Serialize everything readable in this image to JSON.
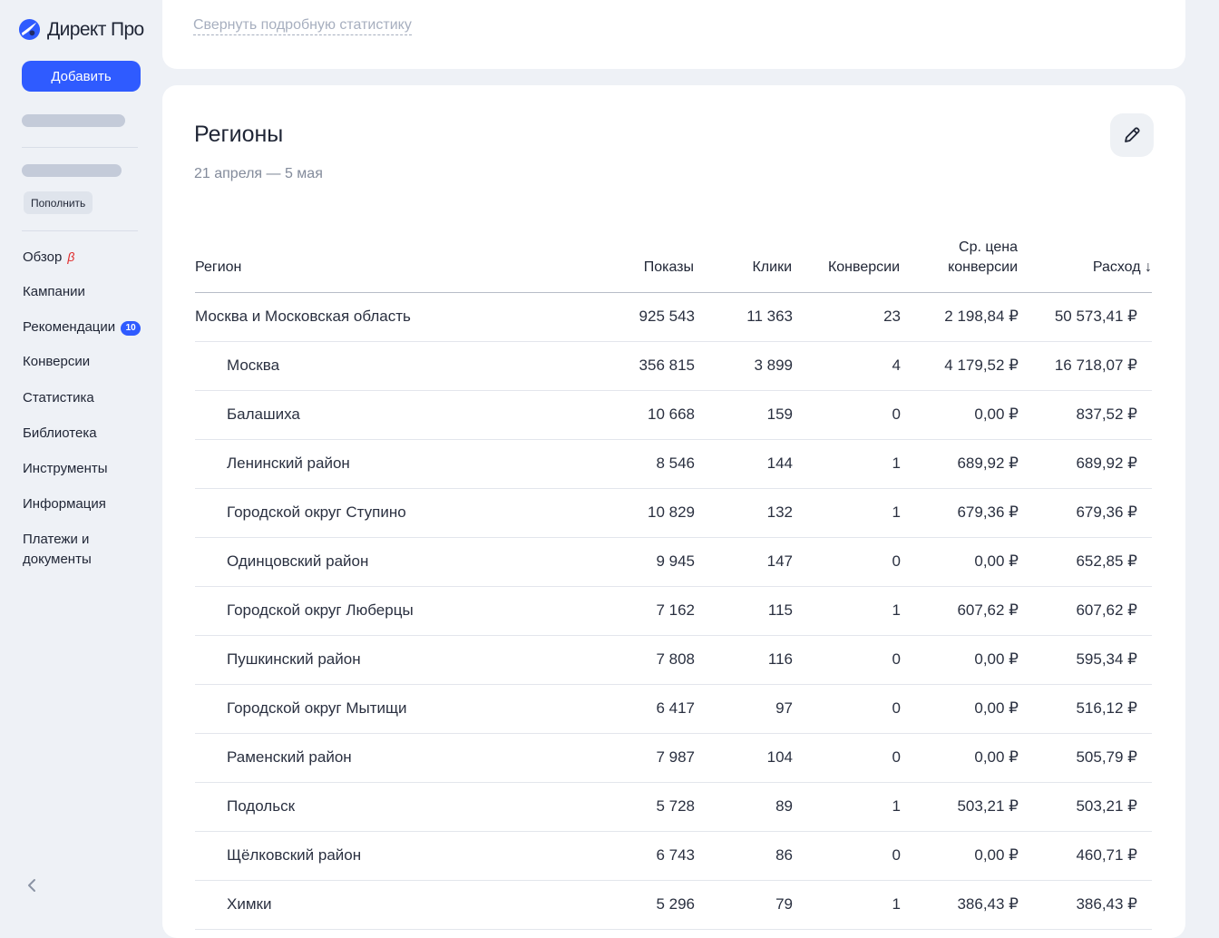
{
  "app": {
    "logo_text": "Директ Про"
  },
  "sidebar": {
    "add_label": "Добавить",
    "topup_label": "Пополнить",
    "items": [
      {
        "label": "Обзор",
        "beta": "β"
      },
      {
        "label": "Кампании"
      },
      {
        "label": "Рекомендации",
        "badge": "10"
      },
      {
        "label": "Конверсии"
      },
      {
        "label": "Статистика"
      },
      {
        "label": "Библиотека"
      },
      {
        "label": "Инструменты"
      },
      {
        "label": "Информация"
      },
      {
        "label": "Платежи и",
        "label2": "документы"
      }
    ]
  },
  "top_card": {
    "collapse_label": "Свернуть подробную статистику"
  },
  "regions": {
    "title": "Регионы",
    "date_range": "21 апреля — 5 мая",
    "columns": {
      "region": "Регион",
      "impressions": "Показы",
      "clicks": "Клики",
      "conversions": "Конверсии",
      "avg_cost_line1": "Ср. цена",
      "avg_cost_line2": "конверсии",
      "spend": "Расход ↓"
    },
    "rows": [
      {
        "region": "Москва и Московская область",
        "impressions": "925 543",
        "clicks": "11 363",
        "conversions": "23",
        "avg_cost": "2 198,84 ₽",
        "spend": "50 573,41 ₽",
        "child": false
      },
      {
        "region": "Москва",
        "impressions": "356 815",
        "clicks": "3 899",
        "conversions": "4",
        "avg_cost": "4 179,52 ₽",
        "spend": "16 718,07 ₽",
        "child": true
      },
      {
        "region": "Балашиха",
        "impressions": "10 668",
        "clicks": "159",
        "conversions": "0",
        "avg_cost": "0,00 ₽",
        "spend": "837,52 ₽",
        "child": true
      },
      {
        "region": "Ленинский район",
        "impressions": "8 546",
        "clicks": "144",
        "conversions": "1",
        "avg_cost": "689,92 ₽",
        "spend": "689,92 ₽",
        "child": true
      },
      {
        "region": "Городской округ Ступино",
        "impressions": "10 829",
        "clicks": "132",
        "conversions": "1",
        "avg_cost": "679,36 ₽",
        "spend": "679,36 ₽",
        "child": true
      },
      {
        "region": "Одинцовский район",
        "impressions": "9 945",
        "clicks": "147",
        "conversions": "0",
        "avg_cost": "0,00 ₽",
        "spend": "652,85 ₽",
        "child": true
      },
      {
        "region": "Городской округ Люберцы",
        "impressions": "7 162",
        "clicks": "115",
        "conversions": "1",
        "avg_cost": "607,62 ₽",
        "spend": "607,62 ₽",
        "child": true
      },
      {
        "region": "Пушкинский район",
        "impressions": "7 808",
        "clicks": "116",
        "conversions": "0",
        "avg_cost": "0,00 ₽",
        "spend": "595,34 ₽",
        "child": true
      },
      {
        "region": "Городской округ Мытищи",
        "impressions": "6 417",
        "clicks": "97",
        "conversions": "0",
        "avg_cost": "0,00 ₽",
        "spend": "516,12 ₽",
        "child": true
      },
      {
        "region": "Раменский район",
        "impressions": "7 987",
        "clicks": "104",
        "conversions": "0",
        "avg_cost": "0,00 ₽",
        "spend": "505,79 ₽",
        "child": true
      },
      {
        "region": "Подольск",
        "impressions": "5 728",
        "clicks": "89",
        "conversions": "1",
        "avg_cost": "503,21 ₽",
        "spend": "503,21 ₽",
        "child": true
      },
      {
        "region": "Щёлковский район",
        "impressions": "6 743",
        "clicks": "86",
        "conversions": "0",
        "avg_cost": "0,00 ₽",
        "spend": "460,71 ₽",
        "child": true
      },
      {
        "region": "Химки",
        "impressions": "5 296",
        "clicks": "79",
        "conversions": "1",
        "avg_cost": "386,43 ₽",
        "spend": "386,43 ₽",
        "child": true
      }
    ]
  }
}
